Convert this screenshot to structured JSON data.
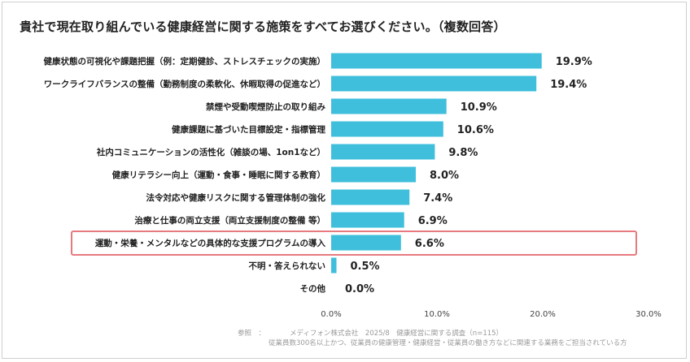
{
  "title": "貴社で現在取り組んでいる健康経営に関する施策をすべてお選びください。（複数回答）",
  "colors": {
    "bar": "#3fbfdc",
    "highlight": "#e8797f",
    "text": "#222222",
    "footnote": "#9a9a9a"
  },
  "chart_data": {
    "type": "bar",
    "orientation": "horizontal",
    "categories": [
      "健康状態の可視化や課題把握（例：定期健診、ストレスチェックの実施）",
      "ワークライフバランスの整備（勤務制度の柔軟化、休暇取得の促進など）",
      "禁煙や受動喫煙防止の取り組み",
      "健康課題に基づいた目標設定・指標管理",
      "社内コミュニケーションの活性化（雑談の場、1on1など）",
      "健康リテラシー向上（運動・食事・睡眠に関する教育）",
      "法令対応や健康リスクに関する管理体制の強化",
      "治療と仕事の両立支援（両立支援制度の整備 等）",
      "運動・栄養・メンタルなどの具体的な支援プログラムの導入",
      "不明・答えられない",
      "その他"
    ],
    "values": [
      19.9,
      19.4,
      10.9,
      10.6,
      9.8,
      8.0,
      7.4,
      6.9,
      6.6,
      0.5,
      0.0
    ],
    "value_labels": [
      "19.9%",
      "19.4%",
      "10.9%",
      "10.6%",
      "9.8%",
      "8.0%",
      "7.4%",
      "6.9%",
      "6.6%",
      "0.5%",
      "0.0%"
    ],
    "highlighted_category": "運動・栄養・メンタルなどの具体的な支援プログラムの導入",
    "xlim": [
      0,
      30
    ],
    "xticks": [
      0,
      10,
      20,
      30
    ],
    "xtick_labels": [
      "0.0%",
      "10.0%",
      "20.0%",
      "30.0%"
    ],
    "grid": false,
    "legend": "none"
  },
  "footnote": {
    "label": "参照　：",
    "line1": "メディフォン株式会社　2025/8　健康経営に関する調査（n=115）",
    "line2": "従業員数300名以上かつ、従業員の健康管理・健康経営・従業員の働き方などに関連する業務をご担当されている方"
  }
}
